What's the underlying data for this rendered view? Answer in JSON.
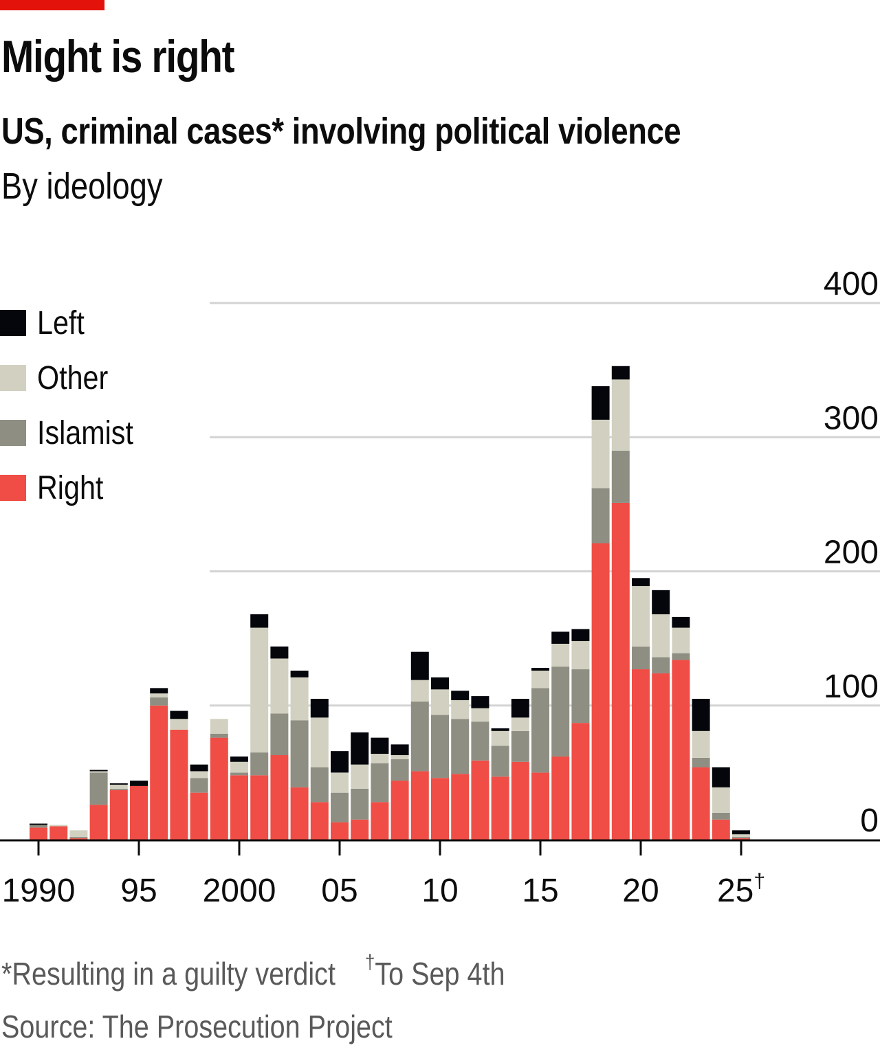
{
  "header": {
    "title": "Might is right",
    "subtitle": "US, criminal cases* involving political violence",
    "subsubtitle": "By ideology"
  },
  "legend": [
    {
      "key": "left",
      "label": "Left",
      "color": "#05060c"
    },
    {
      "key": "other",
      "label": "Other",
      "color": "#d2d1c1"
    },
    {
      "key": "islamist",
      "label": "Islamist",
      "color": "#8e8e82"
    },
    {
      "key": "right",
      "label": "Right",
      "color": "#ef4d45"
    }
  ],
  "footer": {
    "note_star": "*Resulting in a guilty verdict",
    "note_dagger_symbol": "†",
    "note_dagger": "To Sep 4th",
    "source": "Source: The Prosecution Project"
  },
  "colors": {
    "accent": "#e3120b",
    "grid": "#d3d3d3",
    "axis": "#0c0c0c"
  },
  "chart_data": {
    "type": "bar",
    "stacked": true,
    "title": "US, criminal cases* involving political violence",
    "subtitle": "By ideology",
    "xlabel": "",
    "ylabel": "",
    "ylim": [
      0,
      400
    ],
    "yticks": [
      0,
      100,
      200,
      300,
      400
    ],
    "ytick_labels": [
      "0",
      "100",
      "200",
      "300",
      "400"
    ],
    "y_axis_side": "right",
    "grid": true,
    "legend_position": "top-left",
    "xticks": [
      1990,
      1995,
      2000,
      2005,
      2010,
      2015,
      2020,
      2025
    ],
    "xtick_labels": [
      "1990",
      "95",
      "2000",
      "05",
      "10",
      "15",
      "20",
      "25†"
    ],
    "categories": [
      1990,
      1991,
      1992,
      1993,
      1994,
      1995,
      1996,
      1997,
      1998,
      1999,
      2000,
      2001,
      2002,
      2003,
      2004,
      2005,
      2006,
      2007,
      2008,
      2009,
      2010,
      2011,
      2012,
      2013,
      2014,
      2015,
      2016,
      2017,
      2018,
      2019,
      2020,
      2021,
      2022,
      2023,
      2024,
      2025
    ],
    "series": [
      {
        "name": "Right",
        "color": "#ef4d45",
        "values": [
          9,
          10,
          1,
          26,
          37,
          40,
          100,
          82,
          35,
          76,
          48,
          48,
          63,
          39,
          28,
          13,
          15,
          28,
          44,
          51,
          46,
          49,
          59,
          47,
          58,
          50,
          62,
          87,
          221,
          251,
          127,
          124,
          134,
          54,
          15,
          1
        ]
      },
      {
        "name": "Islamist",
        "color": "#8e8e82",
        "values": [
          2,
          0,
          1,
          24,
          1,
          0,
          6,
          0,
          11,
          3,
          2,
          17,
          31,
          50,
          26,
          22,
          23,
          29,
          16,
          52,
          47,
          41,
          29,
          23,
          23,
          63,
          67,
          40,
          41,
          39,
          17,
          12,
          5,
          7,
          5,
          1
        ]
      },
      {
        "name": "Other",
        "color": "#d2d1c1",
        "values": [
          0,
          1,
          5,
          1,
          3,
          0,
          3,
          8,
          5,
          11,
          8,
          93,
          41,
          32,
          37,
          15,
          18,
          7,
          3,
          16,
          19,
          14,
          10,
          11,
          10,
          13,
          17,
          21,
          51,
          53,
          45,
          32,
          19,
          20,
          19,
          2
        ]
      },
      {
        "name": "Left",
        "color": "#05060c",
        "values": [
          1,
          0,
          0,
          1,
          1,
          4,
          4,
          6,
          5,
          0,
          4,
          10,
          9,
          5,
          14,
          16,
          24,
          12,
          8,
          21,
          9,
          7,
          9,
          2,
          14,
          2,
          9,
          9,
          25,
          10,
          6,
          18,
          8,
          24,
          15,
          3
        ]
      }
    ],
    "annotations": [
      "*Resulting in a guilty verdict",
      "†To Sep 4th"
    ],
    "source": "Source: The Prosecution Project"
  }
}
